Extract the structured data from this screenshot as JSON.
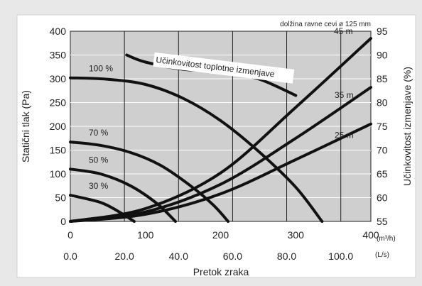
{
  "chart_data": {
    "type": "line",
    "note": "dolžina ravne cevi ø 125 mm",
    "annotation": "Učinkovitost toplotne izmenjave",
    "xlabel": "Pretok zraka",
    "ylabel_left": "Statični tlak (Pa)",
    "ylabel_right": "Učinkovitost izmenjave (%)",
    "x_unit_primary": "(m³/h)",
    "x_unit_secondary": "(L/s)",
    "xlim": [
      0,
      400
    ],
    "ylim_left": [
      0,
      400
    ],
    "ylim_right": [
      55,
      95
    ],
    "x_ticks_primary": [
      "0",
      "100",
      "200",
      "300",
      "400"
    ],
    "x_ticks_secondary": [
      "0.0",
      "20.0",
      "40.0",
      "60.0",
      "80.0",
      "100.0"
    ],
    "x_ticks_secondary_values": [
      0,
      72,
      144,
      216,
      288,
      360
    ],
    "y_ticks_left": [
      "0",
      "50",
      "100",
      "150",
      "200",
      "250",
      "300",
      "350",
      "400"
    ],
    "y_ticks_right": [
      "55",
      "60",
      "65",
      "70",
      "75",
      "80",
      "85",
      "90",
      "95"
    ],
    "fan_curves": [
      {
        "name": "100 %",
        "axis": "left",
        "points": [
          [
            0,
            302
          ],
          [
            50,
            299
          ],
          [
            100,
            288
          ],
          [
            150,
            259
          ],
          [
            200,
            212
          ],
          [
            250,
            148
          ],
          [
            300,
            72
          ],
          [
            335,
            0
          ]
        ]
      },
      {
        "name": "70 %",
        "axis": "left",
        "points": [
          [
            0,
            167
          ],
          [
            40,
            160
          ],
          [
            80,
            145
          ],
          [
            120,
            118
          ],
          [
            160,
            75
          ],
          [
            190,
            35
          ],
          [
            210,
            0
          ]
        ]
      },
      {
        "name": "50 %",
        "axis": "left",
        "points": [
          [
            0,
            110
          ],
          [
            40,
            100
          ],
          [
            80,
            75
          ],
          [
            115,
            38
          ],
          [
            140,
            0
          ]
        ]
      },
      {
        "name": "30 %",
        "axis": "left",
        "points": [
          [
            0,
            55
          ],
          [
            40,
            40
          ],
          [
            65,
            20
          ],
          [
            85,
            0
          ]
        ]
      }
    ],
    "duct_curves": [
      {
        "name": "45 m",
        "axis": "left",
        "points": [
          [
            0,
            0
          ],
          [
            100,
            27
          ],
          [
            200,
            102
          ],
          [
            300,
            240
          ],
          [
            400,
            385
          ]
        ]
      },
      {
        "name": "35 m",
        "axis": "left",
        "points": [
          [
            0,
            0
          ],
          [
            100,
            20
          ],
          [
            200,
            78
          ],
          [
            300,
            175
          ],
          [
            400,
            282
          ]
        ]
      },
      {
        "name": "25 m",
        "axis": "left",
        "points": [
          [
            0,
            0
          ],
          [
            100,
            15
          ],
          [
            200,
            58
          ],
          [
            300,
            130
          ],
          [
            400,
            205
          ]
        ]
      }
    ],
    "efficiency_curve": {
      "axis": "right",
      "points": [
        [
          75,
          90
        ],
        [
          100,
          88.5
        ],
        [
          150,
          87
        ],
        [
          200,
          86.5
        ],
        [
          250,
          85
        ],
        [
          300,
          81.5
        ]
      ]
    }
  }
}
